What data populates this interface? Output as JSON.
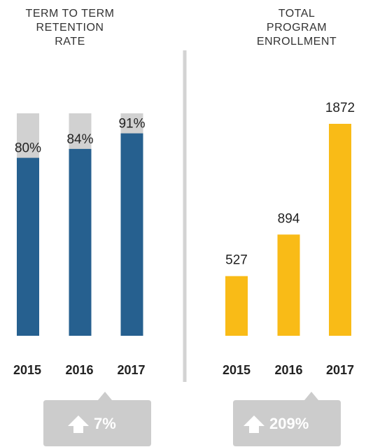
{
  "chart_data": [
    {
      "type": "bar",
      "title": [
        "TERM TO TERM",
        "RETENTION",
        "RATE"
      ],
      "categories": [
        "2015",
        "2016",
        "2017"
      ],
      "values": [
        80,
        84,
        91
      ],
      "value_labels": [
        "80%",
        "84%",
        "91%"
      ],
      "color": "#26608f",
      "track_color": "#d1d1d1",
      "ylim": [
        0,
        100
      ],
      "annotation": "7%"
    },
    {
      "type": "bar",
      "title": [
        "TOTAL",
        "PROGRAM",
        "ENROLLMENT"
      ],
      "categories": [
        "2015",
        "2016",
        "2017"
      ],
      "values": [
        527,
        894,
        1872
      ],
      "color": "#f9bb17",
      "ylim": [
        0,
        1872
      ],
      "annotation": "209%"
    }
  ]
}
